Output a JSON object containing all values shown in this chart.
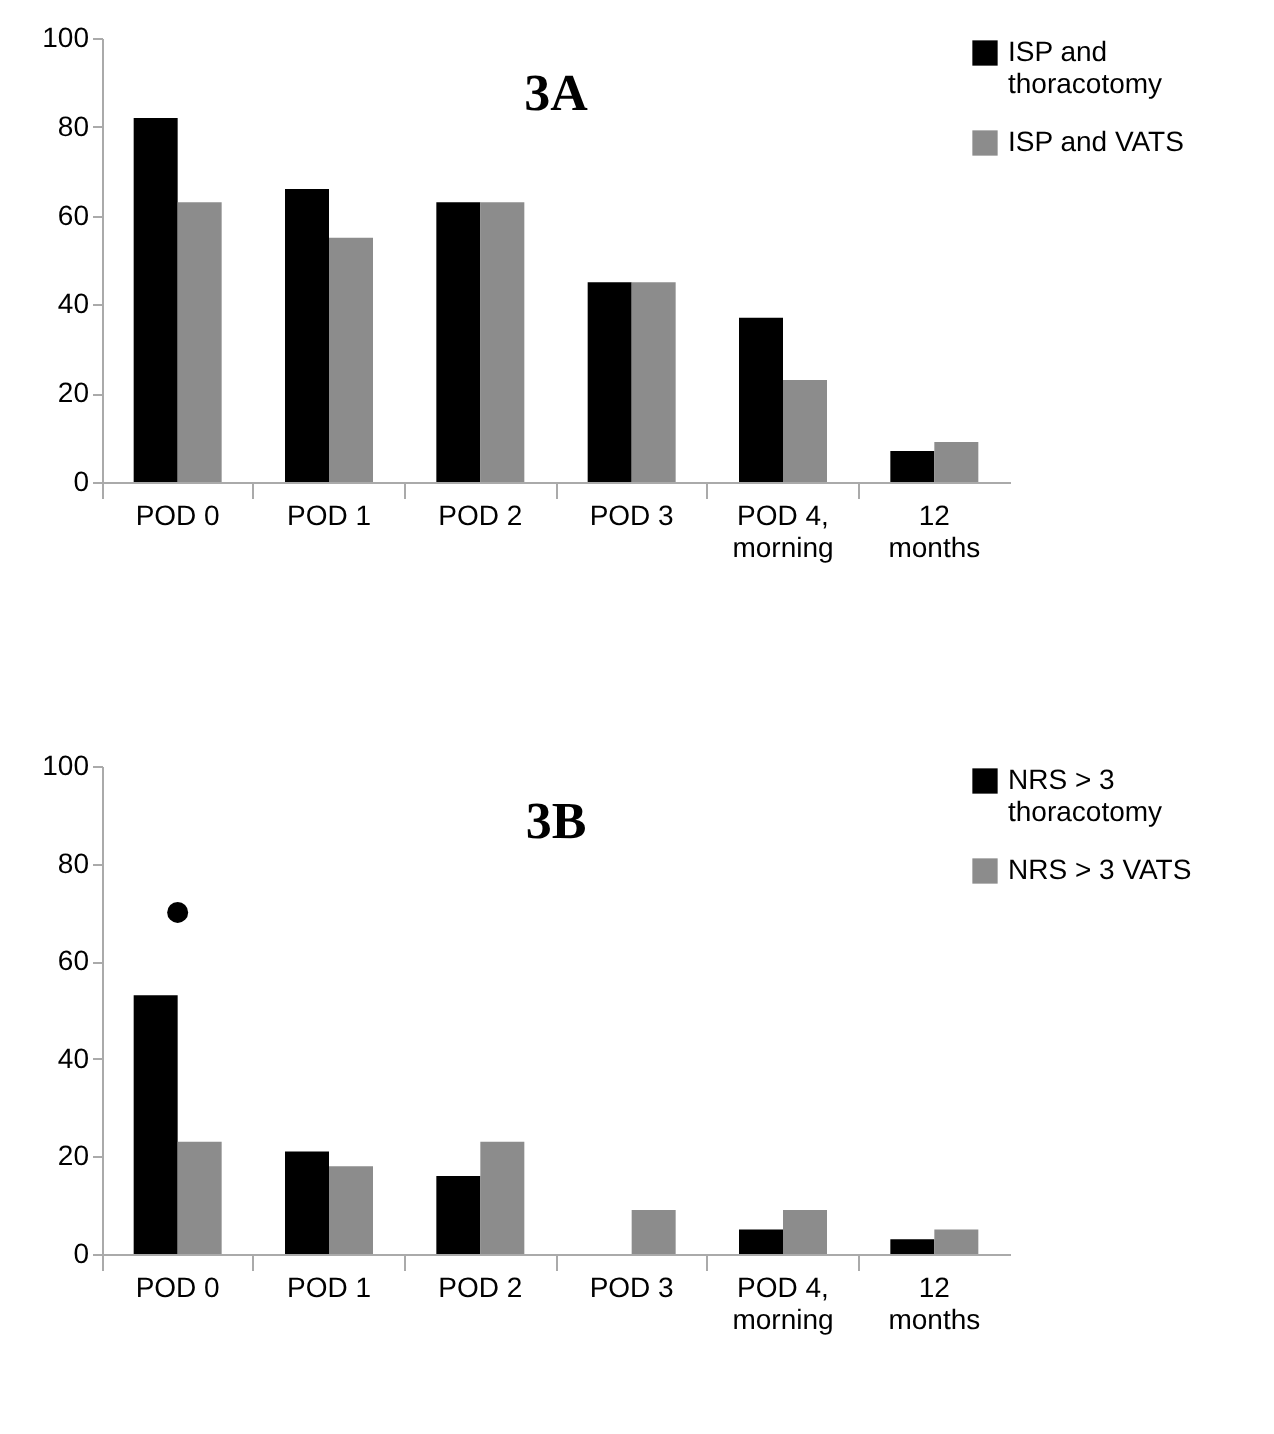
{
  "chart_data": [
    {
      "type": "bar",
      "title": "3A",
      "categories": [
        "POD 0",
        "POD 1",
        "POD 2",
        "POD 3",
        "POD 4, morning",
        "12 months"
      ],
      "series": [
        {
          "name": "ISP and thoracotomy",
          "color": "#000000",
          "values": [
            82,
            66,
            63,
            45,
            37,
            7
          ]
        },
        {
          "name": "ISP and VATS",
          "color": "#8c8c8c",
          "values": [
            63,
            55,
            63,
            45,
            23,
            9
          ]
        }
      ],
      "ylim": [
        0,
        100
      ],
      "yticks": [
        0,
        20,
        40,
        60,
        80,
        100
      ],
      "grid": false,
      "legend": "top right"
    },
    {
      "type": "bar",
      "title": "3B",
      "categories": [
        "POD 0",
        "POD 1",
        "POD 2",
        "POD 3",
        "POD 4, morning",
        "12 months"
      ],
      "series": [
        {
          "name": "NRS > 3 thoracotomy",
          "color": "#000000",
          "values": [
            53,
            21,
            16,
            0,
            5,
            3
          ]
        },
        {
          "name": "NRS > 3 VATS",
          "color": "#8c8c8c",
          "values": [
            23,
            18,
            23,
            9,
            9,
            5
          ]
        },
        {
          "type": "scatter",
          "color": "#000000",
          "x": [
            "POD 0"
          ],
          "values": [
            70
          ]
        }
      ],
      "ylim": [
        0,
        100
      ],
      "yticks": [
        0,
        20,
        40,
        60,
        80,
        100
      ],
      "grid": false,
      "legend": "top right",
      "marker": "circle"
    }
  ]
}
